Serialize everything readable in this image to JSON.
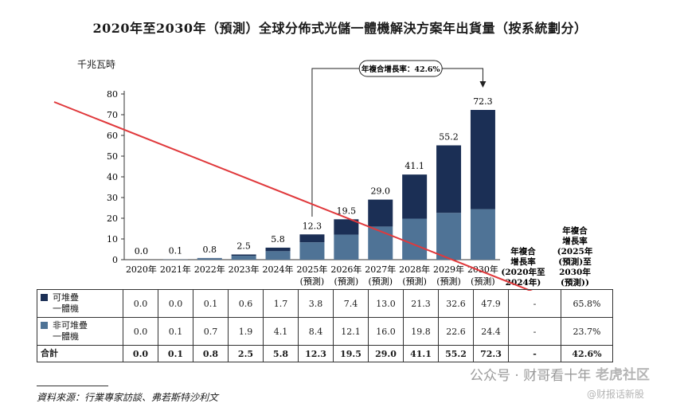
{
  "chart_data": {
    "type": "bar",
    "stacked": true,
    "title": "2020年至2030年（預測）全球分佈式光儲一體機解決方案年出貨量（按系統劃分）",
    "ylabel": "千兆瓦時",
    "ylim": [
      0,
      80
    ],
    "yticks": [
      0,
      10,
      20,
      30,
      40,
      50,
      60,
      70,
      80
    ],
    "categories": [
      {
        "line1": "2020年",
        "line2": ""
      },
      {
        "line1": "2021年",
        "line2": ""
      },
      {
        "line1": "2022年",
        "line2": ""
      },
      {
        "line1": "2023年",
        "line2": ""
      },
      {
        "line1": "2024年",
        "line2": ""
      },
      {
        "line1": "2025年",
        "line2": "(預測)"
      },
      {
        "line1": "2026年",
        "line2": "(預測)"
      },
      {
        "line1": "2027年",
        "line2": "(預測)"
      },
      {
        "line1": "2028年",
        "line2": "(預測)"
      },
      {
        "line1": "2029年",
        "line2": "(預測)"
      },
      {
        "line1": "2030年",
        "line2": "(預測)"
      }
    ],
    "series": [
      {
        "name": "非可堆疊一體機",
        "color": "#4f7396",
        "values": [
          0.0,
          0.1,
          0.7,
          1.9,
          4.1,
          8.4,
          12.1,
          16.0,
          19.8,
          22.6,
          24.4
        ]
      },
      {
        "name": "可堆疊一體機",
        "color": "#1b2f55",
        "values": [
          0.0,
          0.0,
          0.1,
          0.6,
          1.7,
          3.8,
          7.4,
          13.0,
          21.3,
          32.6,
          47.9
        ]
      }
    ],
    "totals": [
      "0.0",
      "0.1",
      "0.8",
      "2.5",
      "5.8",
      "12.3",
      "19.5",
      "29.0",
      "41.1",
      "55.2",
      "72.3"
    ],
    "cagr_annotation": {
      "text": "年複合增長率：42.6%",
      "from_index": 5,
      "to_index": 10
    },
    "cagr_headers": [
      {
        "lines": [
          "年複合",
          "增長率",
          "(2020年至",
          "2024年)"
        ]
      },
      {
        "lines": [
          "年複合",
          "增長率",
          "(2025年",
          "(預測)至",
          "2030年",
          "(預測))"
        ]
      }
    ]
  },
  "table": {
    "rows": [
      {
        "label": [
          "可堆疊",
          "一體機"
        ],
        "color": "#1b2f55",
        "values": [
          "0.0",
          "0.0",
          "0.1",
          "0.6",
          "1.7",
          "3.8",
          "7.4",
          "13.0",
          "21.3",
          "32.6",
          "47.9"
        ],
        "cagr1": "-",
        "cagr2": "65.8%"
      },
      {
        "label": [
          "非可堆疊",
          "一體機"
        ],
        "color": "#4f7396",
        "values": [
          "0.0",
          "0.1",
          "0.7",
          "1.9",
          "4.1",
          "8.4",
          "12.1",
          "16.0",
          "19.8",
          "22.6",
          "24.4"
        ],
        "cagr1": "-",
        "cagr2": "23.7%"
      },
      {
        "label": [
          "合計"
        ],
        "color": "",
        "values": [
          "0.0",
          "0.1",
          "0.8",
          "2.5",
          "5.8",
          "12.3",
          "19.5",
          "29.0",
          "41.1",
          "55.2",
          "72.3"
        ],
        "cagr1": "-",
        "cagr2": "42.6%"
      }
    ]
  },
  "source": "資料來源：行業專家訪談、弗若斯特沙利文",
  "watermark": {
    "text": "公众号 · 财哥看十年",
    "brand": "老虎社区",
    "sub": "@财报话新股"
  },
  "annotation_arrow_color": "#e0393c"
}
